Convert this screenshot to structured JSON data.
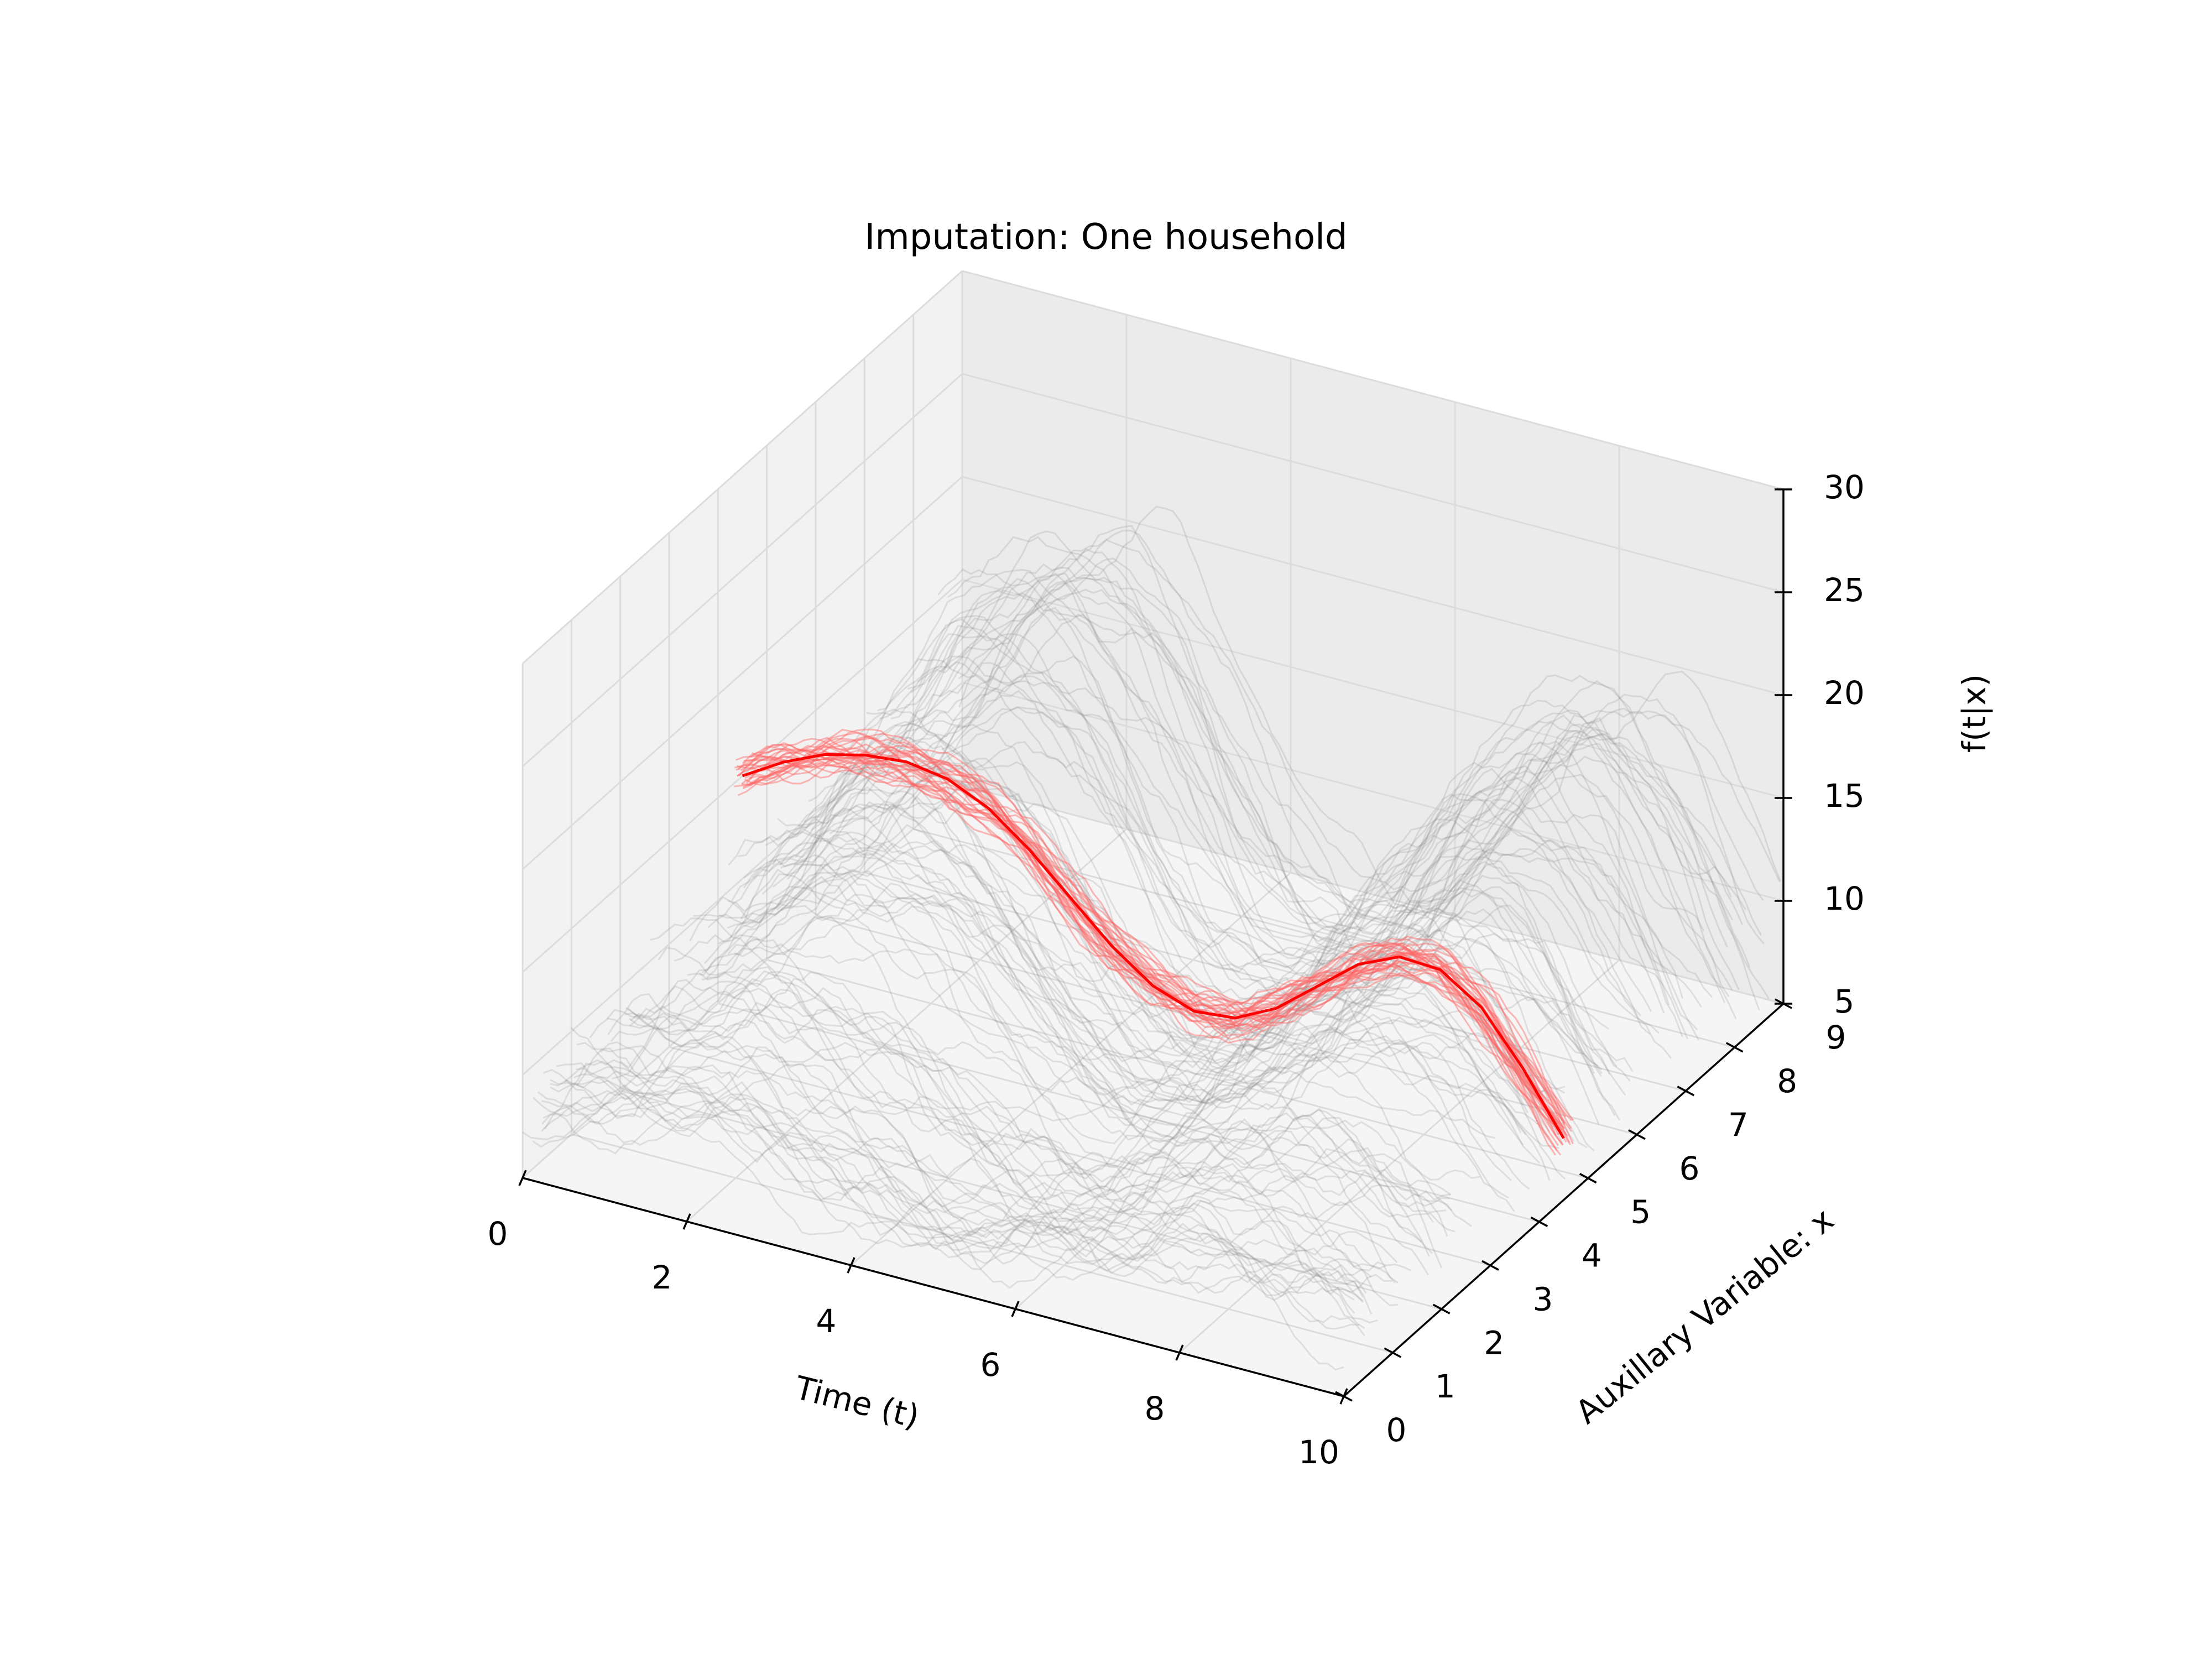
{
  "chart_data": {
    "type": "line",
    "projection": "3d",
    "title": "Imputation: One household",
    "xlabel": "Time (t)",
    "ylabel": "Auxillary Variable: x",
    "zlabel": "f(t|x)",
    "xlim": [
      0,
      10
    ],
    "ylim": [
      0,
      9
    ],
    "zlim": [
      5,
      30
    ],
    "xticks": [
      "0",
      "2",
      "4",
      "6",
      "8",
      "10"
    ],
    "yticks": [
      "0",
      "1",
      "2",
      "3",
      "4",
      "5",
      "6",
      "7",
      "8",
      "9"
    ],
    "zticks": [
      "5",
      "10",
      "15",
      "20",
      "25",
      "30"
    ],
    "grid": true,
    "background_colors": {
      "sampled_curves": "#8c8c8c",
      "imputed_samples": "#ff6666",
      "imputed_mean": "#ff0000"
    },
    "series": [
      {
        "role": "imputed mean, one household",
        "x_aux": 4.5,
        "t": [
          0,
          0.5,
          1,
          1.5,
          2,
          2.5,
          3,
          3.5,
          4,
          4.5,
          5,
          5.5,
          6,
          6.5,
          7,
          7.5,
          8,
          8.5,
          9,
          9.5,
          10
        ],
        "f": [
          15.0,
          16.2,
          17.1,
          17.6,
          17.8,
          17.5,
          16.6,
          15.1,
          13.3,
          11.5,
          10.1,
          9.4,
          9.6,
          10.6,
          12.2,
          13.8,
          14.7,
          14.6,
          13.3,
          10.9,
          8.0
        ]
      }
    ]
  }
}
